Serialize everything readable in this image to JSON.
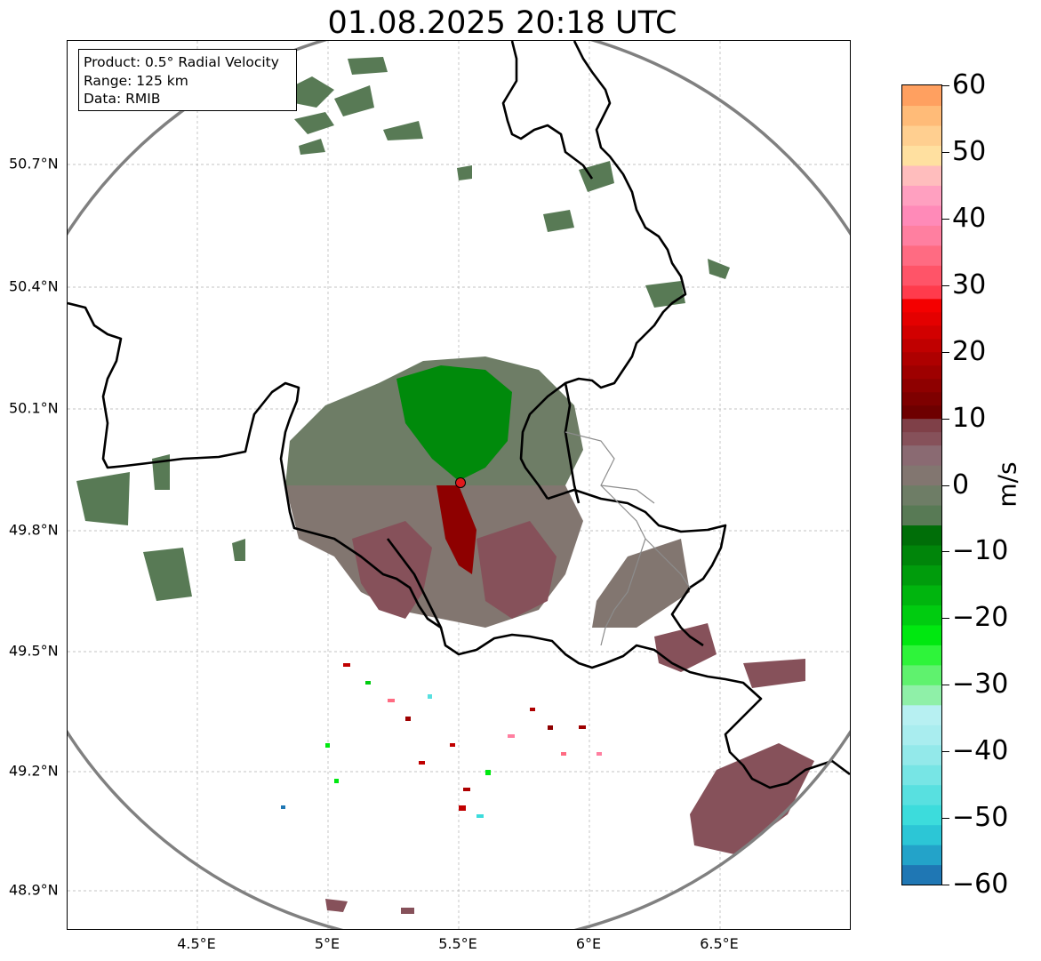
{
  "title": "01.08.2025 20:18 UTC",
  "info_box": {
    "product": "Product: 0.5° Radial Velocity",
    "range": "Range: 125 km",
    "data": "Data: RMIB"
  },
  "map": {
    "lat_labels": [
      {
        "label": "50.7°N",
        "lat": 50.7
      },
      {
        "label": "50.4°N",
        "lat": 50.4
      },
      {
        "label": "50.1°N",
        "lat": 50.1
      },
      {
        "label": "49.8°N",
        "lat": 49.8
      },
      {
        "label": "49.5°N",
        "lat": 49.5
      },
      {
        "label": "49.2°N",
        "lat": 49.2
      },
      {
        "label": "48.9°N",
        "lat": 48.9
      }
    ],
    "lon_labels": [
      {
        "label": "4.5°E",
        "lon": 4.5
      },
      {
        "label": "5°E",
        "lon": 5.0
      },
      {
        "label": "5.5°E",
        "lon": 5.5
      },
      {
        "label": "6°E",
        "lon": 6.0
      },
      {
        "label": "6.5°E",
        "lon": 6.5
      }
    ],
    "lon_range": [
      4.0,
      7.0
    ],
    "lat_range": [
      48.8,
      51.0
    ],
    "radar_site": {
      "lon": 5.505,
      "lat": 49.914
    },
    "range_ring_km": 125,
    "colors": {
      "range_ring": "#808080",
      "border": "#000000",
      "region_border": "#8c8c8c",
      "radar_marker": "#e0191b",
      "grid": "#b0b0b0"
    }
  },
  "colorbar": {
    "unit": "m/s",
    "min": -60,
    "max": 60,
    "ticks": [
      {
        "value": 60,
        "label": "60"
      },
      {
        "value": 50,
        "label": "50"
      },
      {
        "value": 40,
        "label": "40"
      },
      {
        "value": 30,
        "label": "30"
      },
      {
        "value": 20,
        "label": "20"
      },
      {
        "value": 10,
        "label": "10"
      },
      {
        "value": 0,
        "label": "0"
      },
      {
        "value": -10,
        "label": "−10"
      },
      {
        "value": -20,
        "label": "−20"
      },
      {
        "value": -30,
        "label": "−30"
      },
      {
        "value": -40,
        "label": "−40"
      },
      {
        "value": -50,
        "label": "−50"
      },
      {
        "value": -60,
        "label": "−60"
      }
    ],
    "bands": [
      {
        "from": -60,
        "to": -57,
        "color": "#1f77b4"
      },
      {
        "from": -57,
        "to": -54,
        "color": "#23a3c9"
      },
      {
        "from": -54,
        "to": -51,
        "color": "#2cc6d6"
      },
      {
        "from": -51,
        "to": -48,
        "color": "#3cdcdc"
      },
      {
        "from": -48,
        "to": -45,
        "color": "#58e0e0"
      },
      {
        "from": -45,
        "to": -42,
        "color": "#77e5e5"
      },
      {
        "from": -42,
        "to": -39,
        "color": "#93e9ea"
      },
      {
        "from": -39,
        "to": -36,
        "color": "#a9edef"
      },
      {
        "from": -36,
        "to": -33,
        "color": "#b7f0f2"
      },
      {
        "from": -33,
        "to": -30,
        "color": "#8ff0a8"
      },
      {
        "from": -30,
        "to": -27,
        "color": "#5ff26e"
      },
      {
        "from": -27,
        "to": -24,
        "color": "#2ef43a"
      },
      {
        "from": -24,
        "to": -21,
        "color": "#00e810"
      },
      {
        "from": -21,
        "to": -18,
        "color": "#00cc10"
      },
      {
        "from": -18,
        "to": -15,
        "color": "#00b50e"
      },
      {
        "from": -15,
        "to": -12,
        "color": "#009c0c"
      },
      {
        "from": -12,
        "to": -9,
        "color": "#00850a"
      },
      {
        "from": -9,
        "to": -6,
        "color": "#006e08"
      },
      {
        "from": -6,
        "to": -3,
        "color": "#587a55"
      },
      {
        "from": -3,
        "to": 0,
        "color": "#6e7d66"
      },
      {
        "from": 0,
        "to": 3,
        "color": "#827670"
      },
      {
        "from": 3,
        "to": 6,
        "color": "#8a6a72"
      },
      {
        "from": 6,
        "to": 8,
        "color": "#86515a"
      },
      {
        "from": 8,
        "to": 10,
        "color": "#7f4048"
      },
      {
        "from": 10,
        "to": 12,
        "color": "#6e0000"
      },
      {
        "from": 12,
        "to": 14,
        "color": "#7e0000"
      },
      {
        "from": 14,
        "to": 16,
        "color": "#8e0000"
      },
      {
        "from": 16,
        "to": 18,
        "color": "#9e0000"
      },
      {
        "from": 18,
        "to": 20,
        "color": "#ae0000"
      },
      {
        "from": 20,
        "to": 22,
        "color": "#c00000"
      },
      {
        "from": 22,
        "to": 24,
        "color": "#d20000"
      },
      {
        "from": 24,
        "to": 26,
        "color": "#e40000"
      },
      {
        "from": 26,
        "to": 28,
        "color": "#f40000"
      },
      {
        "from": 28,
        "to": 30,
        "color": "#ff3b4c"
      },
      {
        "from": 30,
        "to": 33,
        "color": "#ff5468"
      },
      {
        "from": 33,
        "to": 36,
        "color": "#ff6b82"
      },
      {
        "from": 36,
        "to": 39,
        "color": "#ff7fa0"
      },
      {
        "from": 39,
        "to": 42,
        "color": "#ff8ab8"
      },
      {
        "from": 42,
        "to": 45,
        "color": "#ffa0c0"
      },
      {
        "from": 45,
        "to": 48,
        "color": "#ffbdbd"
      },
      {
        "from": 48,
        "to": 51,
        "color": "#ffe0a0"
      },
      {
        "from": 51,
        "to": 54,
        "color": "#ffcf90"
      },
      {
        "from": 54,
        "to": 57,
        "color": "#ffbb78"
      },
      {
        "from": 57,
        "to": 60,
        "color": "#ffa060"
      }
    ]
  }
}
